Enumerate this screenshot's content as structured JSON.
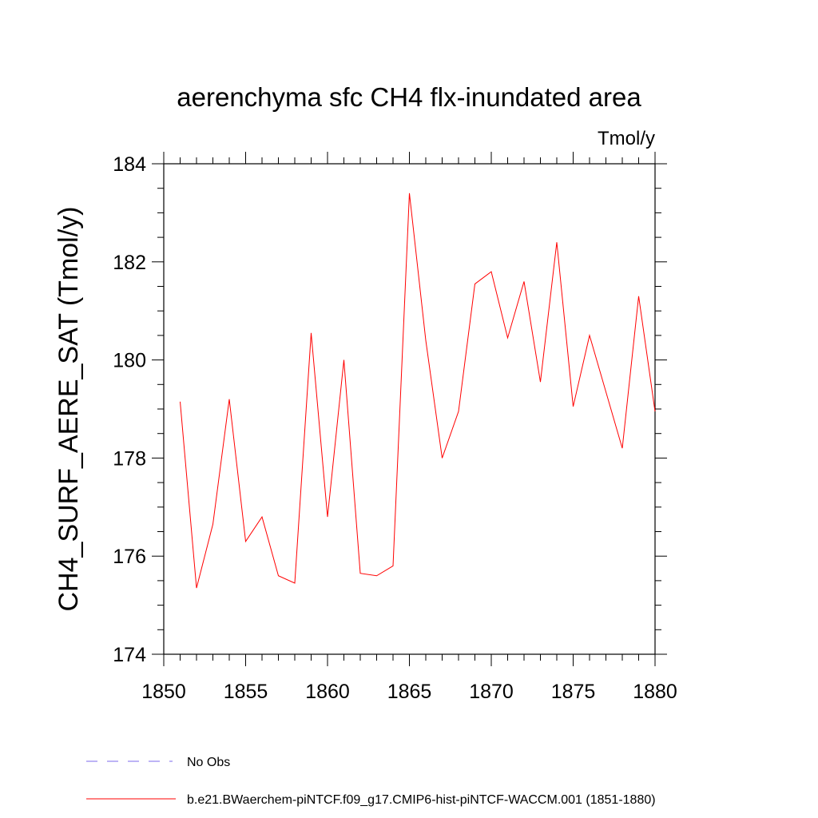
{
  "chart_data": {
    "type": "line",
    "title": "aerenchyma sfc CH4 flx-inundated area",
    "units_label": "Tmol/y",
    "ylabel": "CH4_SURF_AERE_SAT  (Tmol/y)",
    "xlabel": "",
    "xlim": [
      1850,
      1880
    ],
    "ylim": [
      174,
      184
    ],
    "x_ticks": [
      1850,
      1855,
      1860,
      1865,
      1870,
      1875,
      1880
    ],
    "y_ticks": [
      174,
      176,
      178,
      180,
      182,
      184
    ],
    "grid": false,
    "x": [
      1851,
      1852,
      1853,
      1854,
      1855,
      1856,
      1857,
      1858,
      1859,
      1860,
      1861,
      1862,
      1863,
      1864,
      1865,
      1866,
      1867,
      1868,
      1869,
      1870,
      1871,
      1872,
      1873,
      1874,
      1875,
      1876,
      1877,
      1878,
      1879,
      1880
    ],
    "series": [
      {
        "name": "b.e21.BWaerchem-piNTCF.f09_g17.CMIP6-hist-piNTCF-WACCM.001 (1851-1880)",
        "color": "#ff0000",
        "style": "solid",
        "values": [
          179.15,
          175.35,
          176.65,
          179.2,
          176.3,
          176.8,
          175.6,
          175.45,
          180.55,
          176.8,
          180.0,
          175.65,
          175.6,
          175.8,
          183.4,
          180.4,
          178.0,
          178.95,
          181.55,
          181.8,
          180.45,
          181.6,
          179.55,
          182.4,
          179.05,
          180.5,
          179.35,
          178.2,
          181.3,
          178.95
        ]
      }
    ],
    "legend": {
      "placement": "bottom-left",
      "entries": [
        {
          "label": "No Obs",
          "color": "#7b68ee",
          "style": "dashed"
        },
        {
          "label": "b.e21.BWaerchem-piNTCF.f09_g17.CMIP6-hist-piNTCF-WACCM.001 (1851-1880)",
          "color": "#ff0000",
          "style": "solid"
        }
      ]
    }
  }
}
